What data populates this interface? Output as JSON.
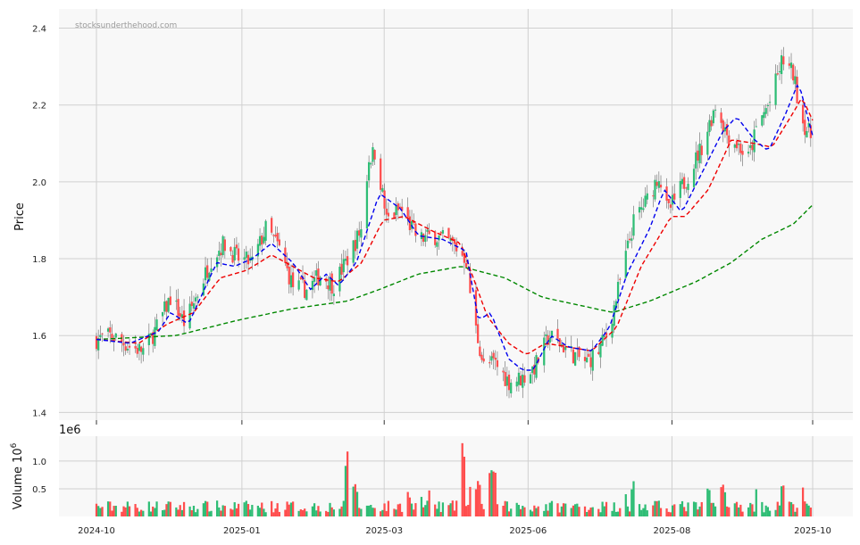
{
  "watermark": "stocksunderthehood.com",
  "colors": {
    "up": "#2ebd75",
    "down": "#ff4d4d",
    "ma_short": "#0000ee",
    "ma_mid": "#ee0000",
    "ma_long": "#008800",
    "panel_bg": "#f8f8f8",
    "grid": "#d0d0d0"
  },
  "chart_data": [
    {
      "type": "candlestick",
      "ylabel": "Price",
      "ylim": [
        1.38,
        2.45
      ],
      "yticks": [
        "1.4",
        "1.6",
        "1.8",
        "2.0",
        "2.2",
        "2.4"
      ],
      "ytick_values": [
        1.4,
        1.6,
        1.8,
        2.0,
        2.2,
        2.4
      ],
      "grid": true,
      "date_range": [
        "2024-10-01",
        "2025-10-04"
      ],
      "price_path": [
        [
          "2024-10-01",
          1.59
        ],
        [
          "2024-10-10",
          1.6
        ],
        [
          "2024-10-20",
          1.57
        ],
        [
          "2024-10-28",
          1.56
        ],
        [
          "2024-11-05",
          1.63
        ],
        [
          "2024-11-12",
          1.7
        ],
        [
          "2024-11-20",
          1.63
        ],
        [
          "2024-11-28",
          1.72
        ],
        [
          "2024-12-05",
          1.8
        ],
        [
          "2024-12-12",
          1.84
        ],
        [
          "2024-12-20",
          1.8
        ],
        [
          "2024-12-28",
          1.79
        ],
        [
          "2025-01-05",
          1.88
        ],
        [
          "2025-01-12",
          1.83
        ],
        [
          "2025-01-20",
          1.73
        ],
        [
          "2025-01-28",
          1.72
        ],
        [
          "2025-02-05",
          1.76
        ],
        [
          "2025-02-12",
          1.73
        ],
        [
          "2025-02-20",
          1.8
        ],
        [
          "2025-02-28",
          1.88
        ],
        [
          "2025-03-04",
          2.06
        ],
        [
          "2025-03-08",
          2.08
        ],
        [
          "2025-03-14",
          1.9
        ],
        [
          "2025-03-22",
          1.93
        ],
        [
          "2025-04-01",
          1.85
        ],
        [
          "2025-04-10",
          1.86
        ],
        [
          "2025-04-20",
          1.84
        ],
        [
          "2025-04-28",
          1.8
        ],
        [
          "2025-05-02",
          1.65
        ],
        [
          "2025-05-08",
          1.52
        ],
        [
          "2025-05-14",
          1.53
        ],
        [
          "2025-05-22",
          1.48
        ],
        [
          "2025-05-30",
          1.49
        ],
        [
          "2025-06-06",
          1.52
        ],
        [
          "2025-06-14",
          1.6
        ],
        [
          "2025-06-20",
          1.58
        ],
        [
          "2025-06-28",
          1.55
        ],
        [
          "2025-07-05",
          1.53
        ],
        [
          "2025-07-12",
          1.56
        ],
        [
          "2025-07-18",
          1.62
        ],
        [
          "2025-07-25",
          1.76
        ],
        [
          "2025-08-01",
          1.9
        ],
        [
          "2025-08-08",
          1.95
        ],
        [
          "2025-08-15",
          2.02
        ],
        [
          "2025-08-20",
          1.92
        ],
        [
          "2025-08-26",
          1.97
        ],
        [
          "2025-09-02",
          2.03
        ],
        [
          "2025-09-09",
          2.1
        ],
        [
          "2025-09-16",
          2.2
        ],
        [
          "2025-09-23",
          2.12
        ],
        [
          "2025-09-30",
          2.09
        ],
        [
          "2025-10-04",
          2.05
        ],
        [
          "2025-10-10",
          2.15
        ],
        [
          "2025-10-17",
          2.21
        ],
        [
          "2025-10-24",
          2.32
        ],
        [
          "2025-10-30",
          2.28
        ],
        [
          "2025-11-04",
          2.16
        ],
        [
          "2025-11-10",
          2.11
        ]
      ],
      "ma_short_path": [
        [
          "2024-10-01",
          1.59
        ],
        [
          "2024-10-20",
          1.58
        ],
        [
          "2024-11-05",
          1.61
        ],
        [
          "2024-11-12",
          1.66
        ],
        [
          "2024-11-22",
          1.63
        ],
        [
          "2024-12-08",
          1.79
        ],
        [
          "2024-12-18",
          1.78
        ],
        [
          "2024-12-28",
          1.8
        ],
        [
          "2025-01-08",
          1.84
        ],
        [
          "2025-01-20",
          1.79
        ],
        [
          "2025-01-30",
          1.72
        ],
        [
          "2025-02-08",
          1.76
        ],
        [
          "2025-02-15",
          1.73
        ],
        [
          "2025-02-25",
          1.79
        ],
        [
          "2025-03-10",
          1.97
        ],
        [
          "2025-03-22",
          1.93
        ],
        [
          "2025-04-01",
          1.86
        ],
        [
          "2025-04-15",
          1.85
        ],
        [
          "2025-04-28",
          1.82
        ],
        [
          "2025-05-05",
          1.64
        ],
        [
          "2025-05-12",
          1.66
        ],
        [
          "2025-05-22",
          1.54
        ],
        [
          "2025-05-30",
          1.51
        ],
        [
          "2025-06-05",
          1.51
        ],
        [
          "2025-06-15",
          1.6
        ],
        [
          "2025-06-25",
          1.57
        ],
        [
          "2025-07-08",
          1.56
        ],
        [
          "2025-07-18",
          1.62
        ],
        [
          "2025-07-28",
          1.76
        ],
        [
          "2025-08-10",
          1.88
        ],
        [
          "2025-08-18",
          1.98
        ],
        [
          "2025-08-28",
          1.92
        ],
        [
          "2025-09-08",
          2.02
        ],
        [
          "2025-09-20",
          2.13
        ],
        [
          "2025-09-28",
          2.17
        ],
        [
          "2025-10-08",
          2.11
        ],
        [
          "2025-10-16",
          2.08
        ],
        [
          "2025-10-26",
          2.18
        ],
        [
          "2025-11-02",
          2.26
        ],
        [
          "2025-11-10",
          2.12
        ]
      ],
      "ma_mid_path": [
        [
          "2024-10-01",
          1.59
        ],
        [
          "2024-10-25",
          1.58
        ],
        [
          "2024-11-10",
          1.63
        ],
        [
          "2024-11-25",
          1.66
        ],
        [
          "2024-12-10",
          1.75
        ],
        [
          "2024-12-25",
          1.77
        ],
        [
          "2025-01-08",
          1.81
        ],
        [
          "2025-01-20",
          1.78
        ],
        [
          "2025-02-01",
          1.75
        ],
        [
          "2025-02-15",
          1.74
        ],
        [
          "2025-02-28",
          1.79
        ],
        [
          "2025-03-12",
          1.9
        ],
        [
          "2025-03-24",
          1.91
        ],
        [
          "2025-04-10",
          1.87
        ],
        [
          "2025-04-25",
          1.84
        ],
        [
          "2025-05-10",
          1.65
        ],
        [
          "2025-05-22",
          1.58
        ],
        [
          "2025-06-01",
          1.55
        ],
        [
          "2025-06-12",
          1.58
        ],
        [
          "2025-06-25",
          1.57
        ],
        [
          "2025-07-08",
          1.56
        ],
        [
          "2025-07-22",
          1.62
        ],
        [
          "2025-08-05",
          1.78
        ],
        [
          "2025-08-22",
          1.91
        ],
        [
          "2025-08-30",
          1.91
        ],
        [
          "2025-09-12",
          1.98
        ],
        [
          "2025-09-25",
          2.11
        ],
        [
          "2025-10-08",
          2.1
        ],
        [
          "2025-10-18",
          2.09
        ],
        [
          "2025-10-30",
          2.18
        ],
        [
          "2025-11-04",
          2.22
        ],
        [
          "2025-11-10",
          2.16
        ]
      ],
      "ma_long_path": [
        [
          "2024-10-01",
          1.59
        ],
        [
          "2024-11-15",
          1.6
        ],
        [
          "2024-12-20",
          1.64
        ],
        [
          "2025-01-20",
          1.67
        ],
        [
          "2025-02-20",
          1.69
        ],
        [
          "2025-03-10",
          1.72
        ],
        [
          "2025-04-01",
          1.76
        ],
        [
          "2025-04-25",
          1.78
        ],
        [
          "2025-05-20",
          1.75
        ],
        [
          "2025-06-10",
          1.7
        ],
        [
          "2025-06-30",
          1.68
        ],
        [
          "2025-07-20",
          1.66
        ],
        [
          "2025-08-10",
          1.69
        ],
        [
          "2025-09-05",
          1.74
        ],
        [
          "2025-09-25",
          1.79
        ],
        [
          "2025-10-12",
          1.85
        ],
        [
          "2025-10-30",
          1.89
        ],
        [
          "2025-11-10",
          1.94
        ],
        [
          "2025-11-20",
          1.98
        ],
        [
          "2025-11-30",
          2.0
        ]
      ]
    },
    {
      "type": "bar",
      "ylabel": "Volume  10",
      "ylabel_exp": "6",
      "offset_text": "1e6",
      "ylim": [
        0,
        1.45
      ],
      "yticks": [
        "0.5",
        "1.0"
      ],
      "ytick_values": [
        0.5,
        1.0
      ],
      "grid": true,
      "typical_volume": 0.18,
      "spikes": [
        [
          "2025-02-20",
          1.18
        ],
        [
          "2025-02-22",
          0.62
        ],
        [
          "2025-02-24",
          0.63
        ],
        [
          "2025-03-26",
          0.45
        ],
        [
          "2025-04-02",
          0.42
        ],
        [
          "2025-04-08",
          0.56
        ],
        [
          "2025-04-26",
          1.35
        ],
        [
          "2025-05-01",
          0.62
        ],
        [
          "2025-05-05",
          0.68
        ],
        [
          "2025-05-12",
          0.91
        ],
        [
          "2025-05-14",
          0.9
        ],
        [
          "2025-07-26",
          0.55
        ],
        [
          "2025-08-01",
          0.67
        ],
        [
          "2025-09-12",
          0.55
        ],
        [
          "2025-09-20",
          0.62
        ],
        [
          "2025-10-10",
          0.6
        ],
        [
          "2025-10-24",
          0.62
        ],
        [
          "2025-11-04",
          0.58
        ]
      ]
    }
  ],
  "xaxis": {
    "ticks": [
      "2024-10",
      "2025-01",
      "2025-03",
      "2025-06",
      "2025-08",
      "2025-10"
    ]
  }
}
